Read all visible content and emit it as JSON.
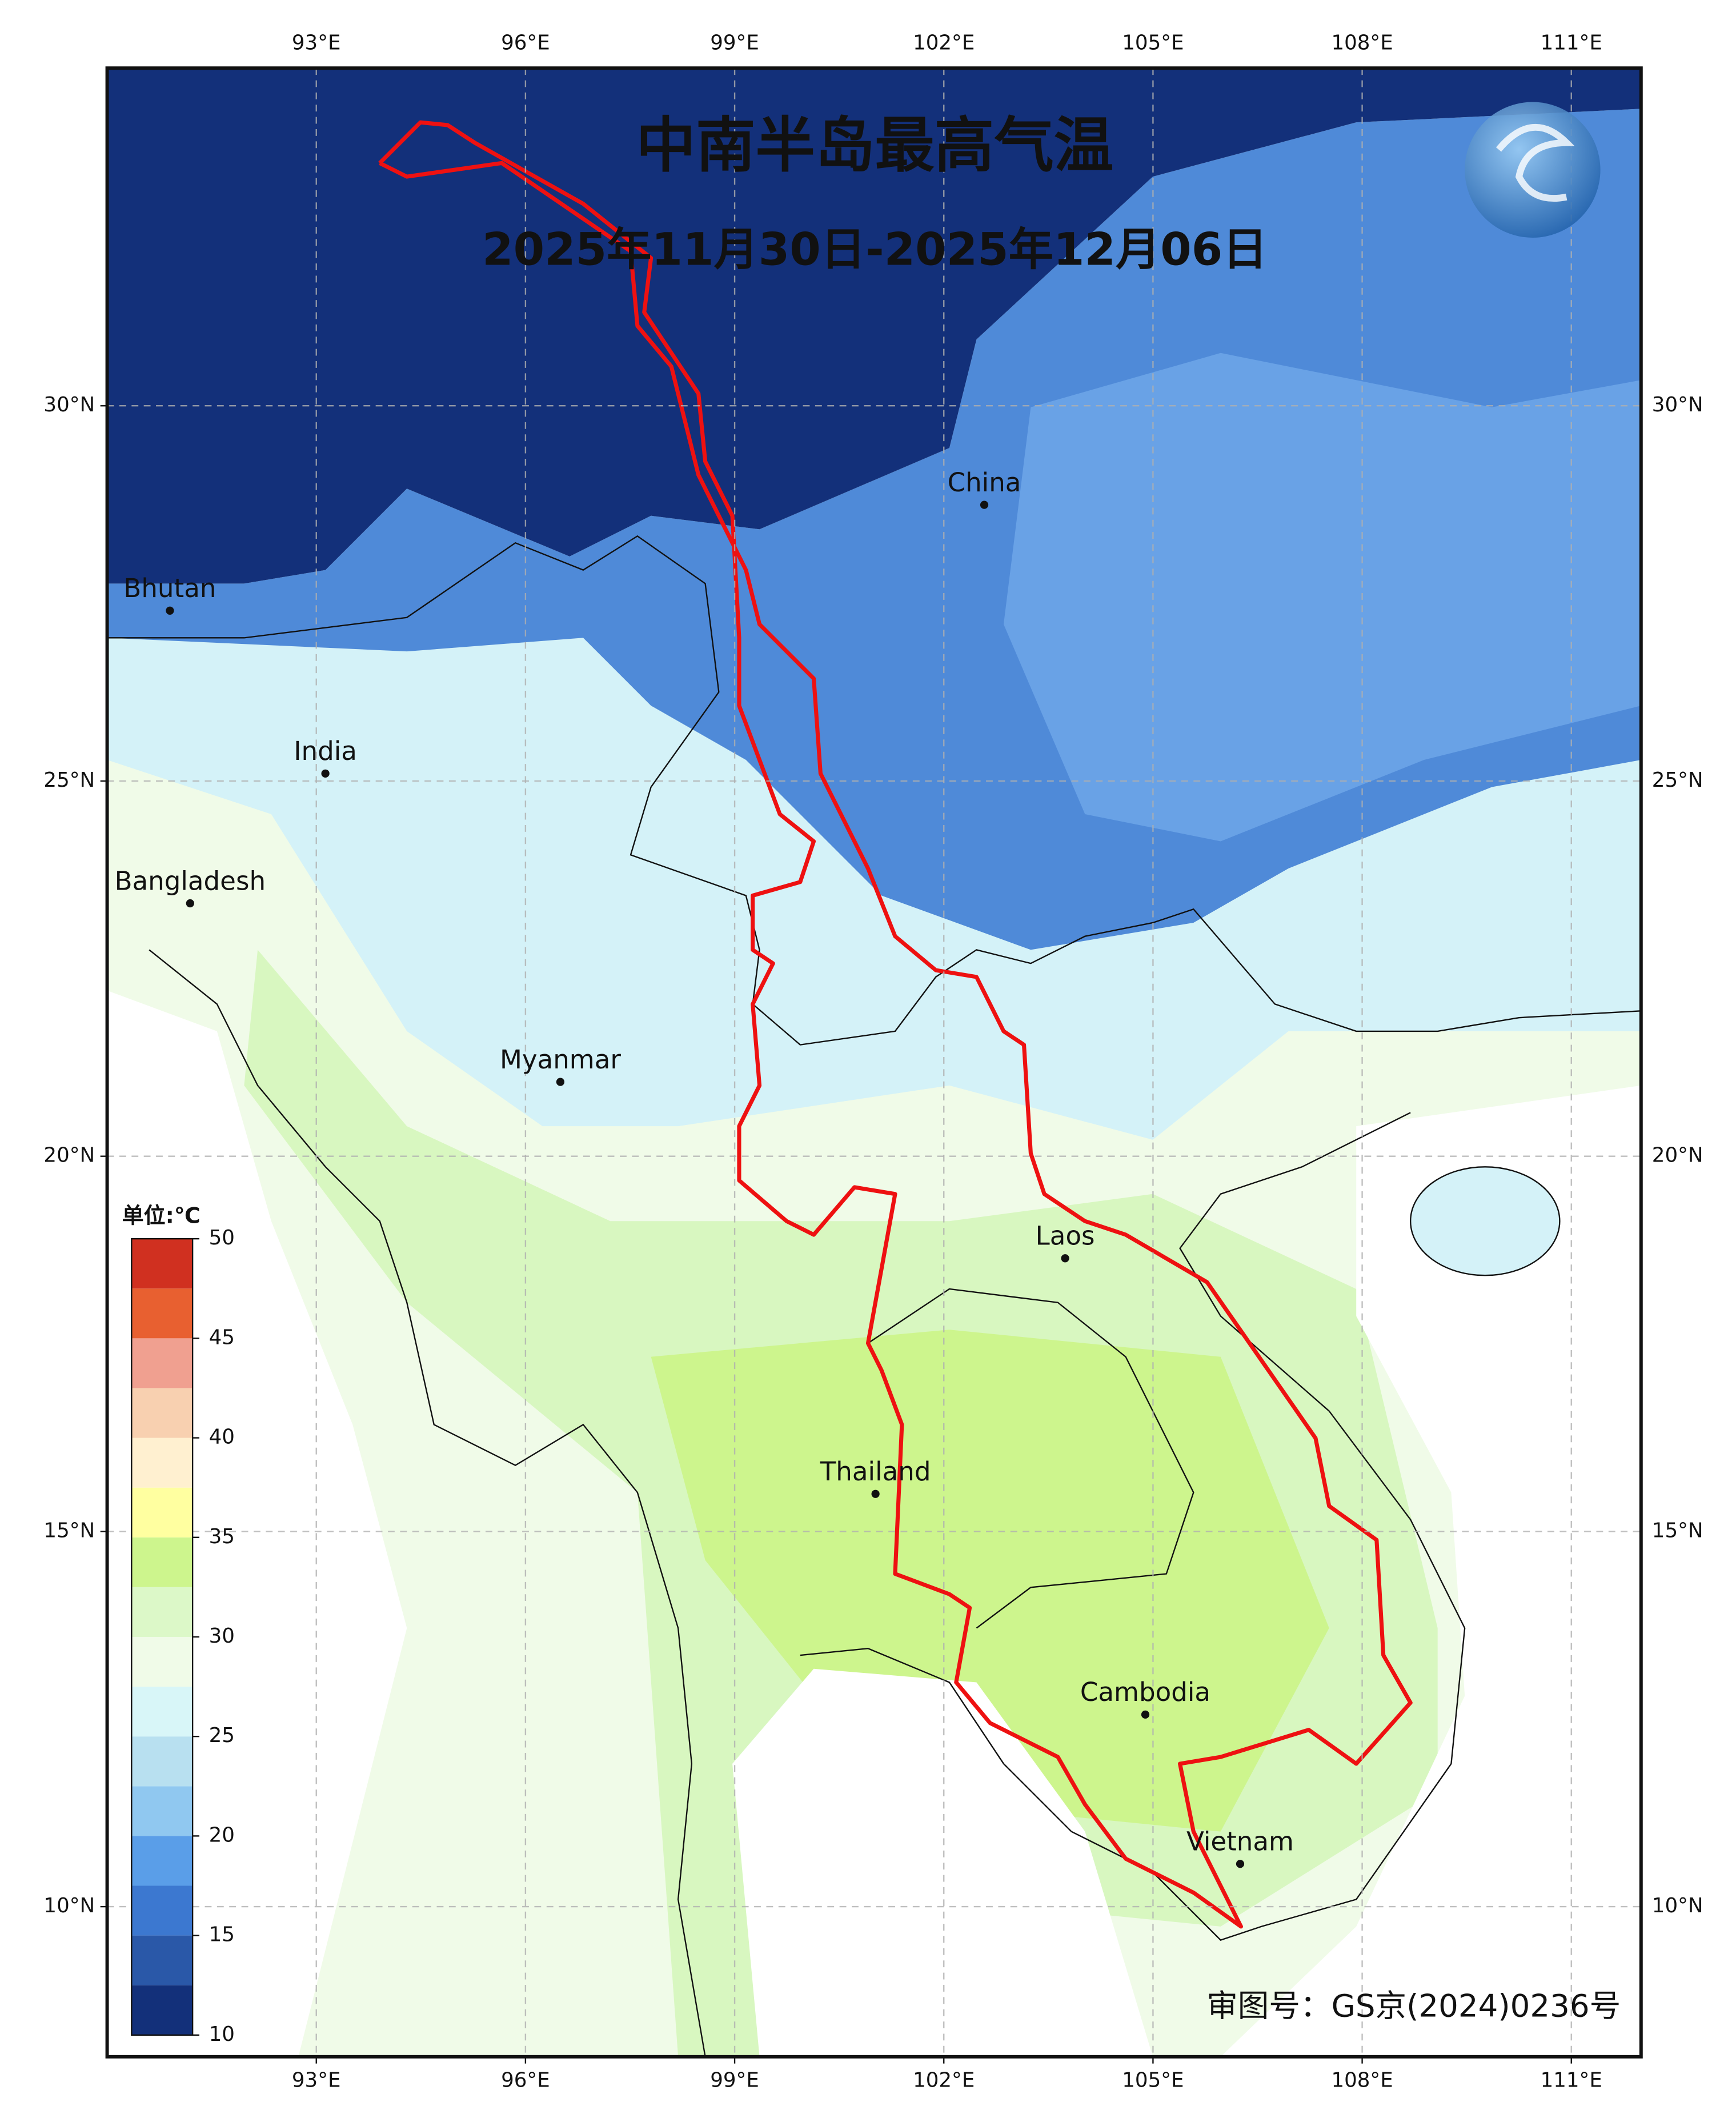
{
  "map": {
    "title": "中南半岛最高气温",
    "subtitle": "2025年11月30日-2025年12月06日",
    "approval": "审图号：GS京(2024)0236号",
    "lonlim": [
      90,
      112
    ],
    "latlim": [
      8,
      34.5
    ],
    "lonticks": [
      {
        "value": 93,
        "label": "93°E"
      },
      {
        "value": 96,
        "label": "96°E"
      },
      {
        "value": 99,
        "label": "99°E"
      },
      {
        "value": 102,
        "label": "102°E"
      },
      {
        "value": 105,
        "label": "105°E"
      },
      {
        "value": 108,
        "label": "108°E"
      },
      {
        "value": 111,
        "label": "111°E"
      }
    ],
    "latticks": [
      {
        "value": 10,
        "label": "10°N"
      },
      {
        "value": 15,
        "label": "15°N"
      },
      {
        "value": 20,
        "label": "20°N"
      },
      {
        "value": 25,
        "label": "25°N"
      },
      {
        "value": 30,
        "label": "30°N"
      }
    ],
    "grid": true,
    "places": [
      {
        "name": "Bhutan",
        "lon": 90.9,
        "lat": 27.27
      },
      {
        "name": "India",
        "lon": 93.13,
        "lat": 25.1
      },
      {
        "name": "Bangladesh",
        "lon": 91.19,
        "lat": 23.37
      },
      {
        "name": "China",
        "lon": 102.58,
        "lat": 28.68
      },
      {
        "name": "Myanmar",
        "lon": 96.5,
        "lat": 20.99
      },
      {
        "name": "Laos",
        "lon": 103.74,
        "lat": 18.64
      },
      {
        "name": "Thailand",
        "lon": 101.02,
        "lat": 15.5
      },
      {
        "name": "Cambodia",
        "lon": 104.89,
        "lat": 12.56
      },
      {
        "name": "Vietnam",
        "lon": 106.25,
        "lat": 10.57
      }
    ],
    "colorbar": {
      "unit": "单位:℃",
      "levels": [
        10,
        12.5,
        15,
        17.5,
        20,
        22.5,
        25,
        27.5,
        30,
        32.5,
        35,
        37.5,
        40,
        42.5,
        45,
        47.5,
        50
      ],
      "colors": [
        "#13307a",
        "#2a58a8",
        "#3c78d0",
        "#5a9ee8",
        "#90c8f0",
        "#b8e0f0",
        "#d8f6f8",
        "#f0fbe8",
        "#dcf8c8",
        "#cdf58d",
        "#ffffa0",
        "#fff0d0",
        "#f8d0b0",
        "#f0a090",
        "#e86030",
        "#d03020"
      ],
      "ticks": [
        10,
        15,
        20,
        25,
        30,
        35,
        40,
        45,
        50
      ]
    }
  }
}
